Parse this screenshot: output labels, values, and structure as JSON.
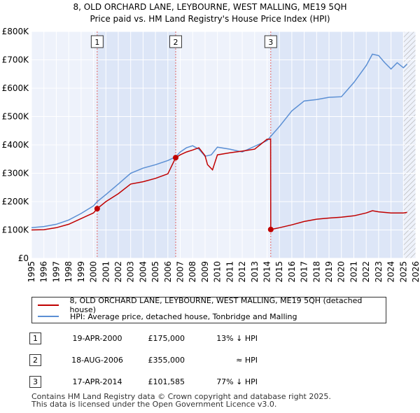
{
  "header": {
    "title_line1": "8, OLD ORCHARD LANE, LEYBOURNE, WEST MALLING, ME19 5QH",
    "title_line2": "Price paid vs. HM Land Registry's House Price Index (HPI)"
  },
  "legend": {
    "property_label": "8, OLD ORCHARD LANE, LEYBOURNE, WEST MALLING, ME19 5QH (detached house)",
    "hpi_label": "HPI: Average price, detached house, Tonbridge and Malling"
  },
  "transactions": [
    {
      "num": "1",
      "date": "19-APR-2000",
      "price": "£175,000",
      "hpi": "13% ↓ HPI"
    },
    {
      "num": "2",
      "date": "18-AUG-2006",
      "price": "£355,000",
      "hpi": "≈ HPI"
    },
    {
      "num": "3",
      "date": "17-APR-2014",
      "price": "£101,585",
      "hpi": "77% ↓ HPI"
    }
  ],
  "footer": {
    "line1": "Contains HM Land Registry data © Crown copyright and database right 2025.",
    "line2": "This data is licensed under the Open Government Licence v3.0."
  },
  "colors": {
    "property": "#c00000",
    "hpi": "#5b8fd4",
    "shade": "#dde6f7",
    "hatch": "#b0b0b0",
    "grid": "#ffffff",
    "background": "#eef2fb"
  },
  "chart_data": {
    "type": "line",
    "title": "8, OLD ORCHARD LANE, LEYBOURNE, WEST MALLING, ME19 5QH Price paid vs. HM Land Registry's House Price Index (HPI)",
    "xlabel": "",
    "ylabel": "",
    "xlim": [
      1995,
      2026
    ],
    "ylim": [
      0,
      800000
    ],
    "x_ticks": [
      "1995",
      "1996",
      "1997",
      "1998",
      "1999",
      "2000",
      "2001",
      "2002",
      "2003",
      "2004",
      "2005",
      "2006",
      "2007",
      "2008",
      "2009",
      "2010",
      "2011",
      "2012",
      "2013",
      "2014",
      "2015",
      "2016",
      "2017",
      "2018",
      "2019",
      "2020",
      "2021",
      "2022",
      "2023",
      "2024",
      "2025",
      "2026"
    ],
    "y_ticks": [
      0,
      100000,
      200000,
      300000,
      400000,
      500000,
      600000,
      700000,
      800000
    ],
    "y_tick_labels": [
      "£0",
      "£100K",
      "£200K",
      "£300K",
      "£400K",
      "£500K",
      "£600K",
      "£700K",
      "£800K"
    ],
    "hatch_from": 2025.0,
    "series": [
      {
        "name": "8, OLD ORCHARD LANE, LEYBOURNE, WEST MALLING, ME19 5QH (detached house)",
        "x": [
          1995.0,
          1996.0,
          1997.0,
          1998.0,
          1999.0,
          2000.0,
          2000.3,
          2001.0,
          2002.0,
          2003.0,
          2004.0,
          2005.0,
          2006.0,
          2006.63,
          2007.0,
          2007.5,
          2008.0,
          2008.5,
          2009.0,
          2009.2,
          2009.6,
          2010.0,
          2011.0,
          2012.0,
          2013.0,
          2014.0,
          2014.29,
          2014.3,
          2015.0,
          2016.0,
          2017.0,
          2018.0,
          2019.0,
          2020.0,
          2021.0,
          2022.0,
          2022.5,
          2023.0,
          2024.0,
          2025.0,
          2025.3
        ],
        "values": [
          100000,
          101000,
          108000,
          120000,
          140000,
          160000,
          175000,
          200000,
          228000,
          262000,
          270000,
          282000,
          298000,
          355000,
          365000,
          375000,
          382000,
          390000,
          362000,
          330000,
          312000,
          365000,
          372000,
          378000,
          385000,
          420000,
          420000,
          101585,
          108000,
          118000,
          130000,
          138000,
          142000,
          145000,
          150000,
          160000,
          168000,
          164000,
          160000,
          160000,
          162000
        ]
      },
      {
        "name": "HPI: Average price, detached house, Tonbridge and Malling",
        "x": [
          1995.0,
          1996.0,
          1997.0,
          1998.0,
          1999.0,
          2000.0,
          2000.3,
          2001.0,
          2002.0,
          2003.0,
          2004.0,
          2005.0,
          2006.0,
          2006.63,
          2007.0,
          2007.5,
          2008.0,
          2008.5,
          2009.0,
          2009.5,
          2010.0,
          2011.0,
          2012.0,
          2013.0,
          2014.0,
          2014.3,
          2015.0,
          2016.0,
          2017.0,
          2018.0,
          2019.0,
          2020.0,
          2021.0,
          2022.0,
          2022.5,
          2023.0,
          2023.5,
          2024.0,
          2024.5,
          2025.0,
          2025.3
        ],
        "values": [
          108000,
          112000,
          120000,
          135000,
          158000,
          185000,
          200000,
          225000,
          262000,
          300000,
          318000,
          330000,
          345000,
          358000,
          375000,
          390000,
          397000,
          385000,
          360000,
          365000,
          392000,
          385000,
          375000,
          395000,
          415000,
          430000,
          465000,
          520000,
          555000,
          560000,
          568000,
          570000,
          620000,
          680000,
          720000,
          715000,
          690000,
          668000,
          690000,
          672000,
          685000
        ]
      }
    ],
    "markers": [
      {
        "label": "1",
        "x": 2000.3,
        "y": 175000
      },
      {
        "label": "2",
        "x": 2006.63,
        "y": 355000
      },
      {
        "label": "3",
        "x": 2014.3,
        "y": 101585
      }
    ]
  }
}
